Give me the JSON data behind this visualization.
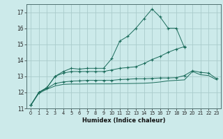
{
  "title": "",
  "xlabel": "Humidex (Indice chaleur)",
  "ylabel": "",
  "bg_color": "#cceaea",
  "grid_color": "#aacccc",
  "line_color": "#1a6b5a",
  "xlim": [
    -0.5,
    23.5
  ],
  "ylim": [
    11,
    17.5
  ],
  "yticks": [
    11,
    12,
    13,
    14,
    15,
    16,
    17
  ],
  "xticks": [
    0,
    1,
    2,
    3,
    4,
    5,
    6,
    7,
    8,
    9,
    10,
    11,
    12,
    13,
    14,
    15,
    16,
    17,
    18,
    19,
    20,
    21,
    22,
    23
  ],
  "lines": [
    {
      "x": [
        0,
        1,
        2,
        3,
        4,
        5,
        6,
        7,
        8,
        9,
        10,
        11,
        12,
        13,
        14,
        15,
        16,
        17,
        18,
        19
      ],
      "y": [
        11.2,
        12.0,
        12.3,
        13.0,
        13.3,
        13.5,
        13.45,
        13.5,
        13.5,
        13.5,
        14.1,
        15.2,
        15.5,
        16.0,
        16.6,
        17.2,
        16.7,
        16.0,
        16.0,
        14.8
      ],
      "marker": true
    },
    {
      "x": [
        0,
        1,
        2,
        3,
        4,
        5,
        6,
        7,
        8,
        9,
        10,
        11,
        12,
        13,
        14,
        15,
        16,
        17,
        18,
        19
      ],
      "y": [
        11.2,
        12.0,
        12.3,
        13.0,
        13.2,
        13.3,
        13.3,
        13.3,
        13.3,
        13.3,
        13.4,
        13.5,
        13.55,
        13.6,
        13.8,
        14.05,
        14.25,
        14.5,
        14.7,
        14.85
      ],
      "marker": true
    },
    {
      "x": [
        0,
        1,
        2,
        3,
        4,
        5,
        6,
        7,
        8,
        9,
        10,
        11,
        12,
        13,
        14,
        15,
        16,
        17,
        18,
        19,
        20,
        21,
        22,
        23
      ],
      "y": [
        11.2,
        12.0,
        12.25,
        12.55,
        12.65,
        12.7,
        12.72,
        12.75,
        12.75,
        12.75,
        12.75,
        12.8,
        12.82,
        12.85,
        12.85,
        12.87,
        12.9,
        12.9,
        12.92,
        13.05,
        13.35,
        13.25,
        13.2,
        12.85
      ],
      "marker": true
    },
    {
      "x": [
        0,
        1,
        2,
        3,
        4,
        5,
        6,
        7,
        8,
        9,
        10,
        11,
        12,
        13,
        14,
        15,
        16,
        17,
        18,
        19,
        20,
        21,
        22,
        23
      ],
      "y": [
        11.2,
        11.95,
        12.2,
        12.4,
        12.5,
        12.52,
        12.52,
        12.53,
        12.53,
        12.53,
        12.53,
        12.55,
        12.55,
        12.56,
        12.57,
        12.6,
        12.65,
        12.72,
        12.75,
        12.78,
        13.3,
        13.1,
        13.05,
        12.78
      ],
      "marker": false
    }
  ]
}
